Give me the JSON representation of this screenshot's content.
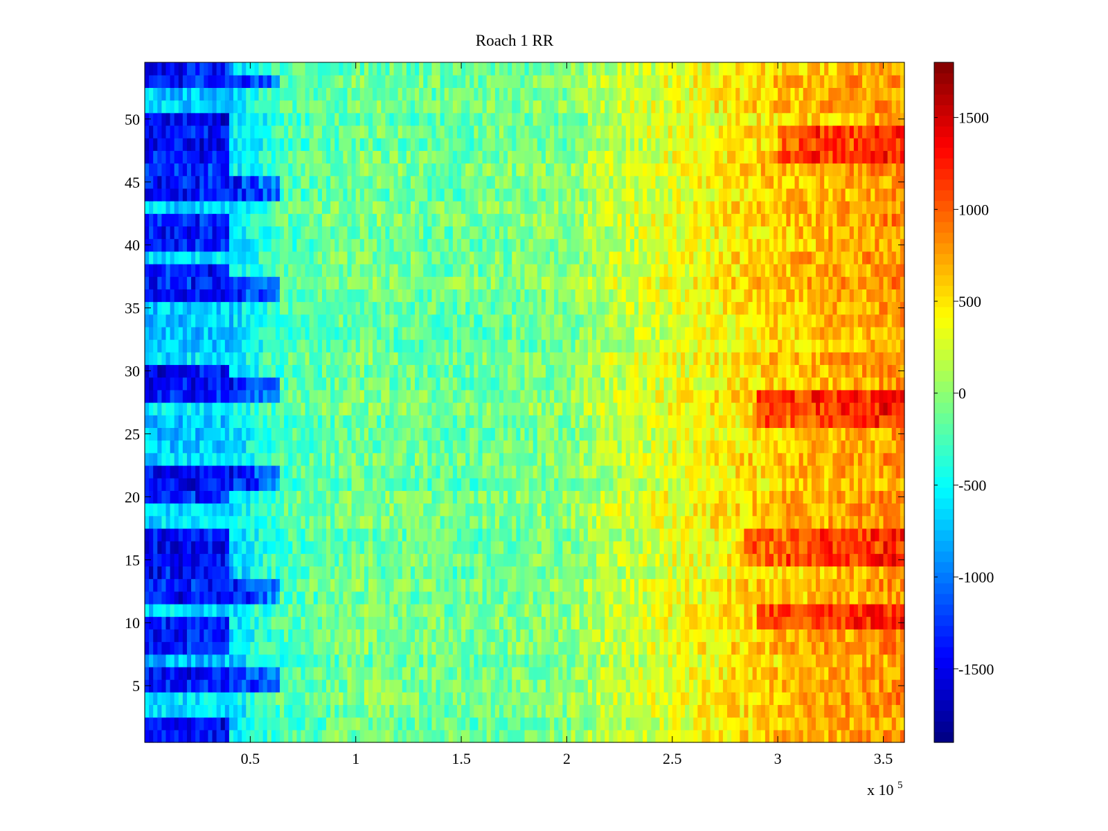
{
  "chart_data": {
    "type": "heatmap",
    "title": "Roach 1 RR",
    "xlabel": "",
    "ylabel": "",
    "x_multiplier_label": {
      "base": "x 10",
      "exponent": "5"
    },
    "xlim": [
      0,
      3.6
    ],
    "ylim": [
      0.5,
      54.5
    ],
    "xticks": [
      0.5,
      1,
      1.5,
      2,
      2.5,
      3,
      3.5
    ],
    "xtick_labels": [
      "0.5",
      "1",
      "1.5",
      "2",
      "2.5",
      "3",
      "3.5"
    ],
    "yticks": [
      5,
      10,
      15,
      20,
      25,
      30,
      35,
      40,
      45,
      50
    ],
    "ytick_labels": [
      "5",
      "10",
      "15",
      "20",
      "25",
      "30",
      "35",
      "40",
      "45",
      "50"
    ],
    "rows": 54,
    "colorbar": {
      "colormap": "jet",
      "clim": [
        -1900,
        1800
      ],
      "ticks": [
        1500,
        1000,
        500,
        0,
        -500,
        -1000,
        -1500
      ],
      "tick_labels": [
        "1500",
        "1000",
        "500",
        "0",
        "-500",
        "-1000",
        "-1500"
      ]
    },
    "trend": {
      "x": [
        0.0,
        0.4,
        0.65,
        1.0,
        1.5,
        2.0,
        2.2,
        2.5,
        3.0,
        3.6
      ],
      "value": [
        -700,
        -650,
        -250,
        -100,
        -150,
        -50,
        150,
        300,
        600,
        800
      ]
    },
    "dark_blue_regions": [
      {
        "x": [
          0.0,
          0.4
        ],
        "rows": [
          1,
          2,
          5,
          6,
          8,
          9,
          10,
          12,
          13,
          14,
          15,
          16,
          17,
          20,
          21,
          22,
          28,
          29,
          30,
          36,
          37,
          38,
          40,
          41,
          42,
          44,
          45,
          46,
          47,
          48,
          49,
          50,
          53,
          54
        ]
      },
      {
        "x": [
          0.4,
          0.64
        ],
        "rows": [
          5,
          6,
          12,
          13,
          21,
          22,
          28,
          29,
          36,
          37,
          44,
          45,
          53
        ]
      }
    ],
    "hot_regions": [
      {
        "x": [
          2.85,
          3.6
        ],
        "rows": [
          15,
          16,
          17
        ]
      },
      {
        "x": [
          2.9,
          3.6
        ],
        "rows": [
          10,
          11
        ]
      },
      {
        "x": [
          2.9,
          3.6
        ],
        "rows": [
          26,
          27,
          28
        ]
      },
      {
        "x": [
          3.0,
          3.6
        ],
        "rows": [
          47,
          48,
          49
        ]
      }
    ]
  }
}
